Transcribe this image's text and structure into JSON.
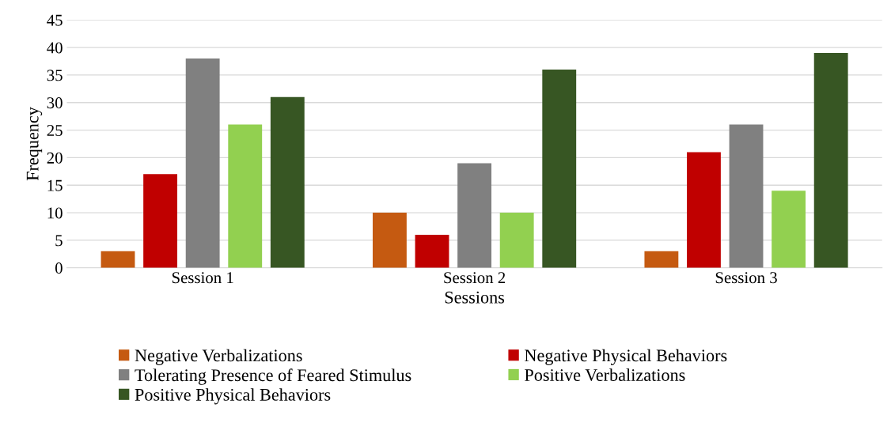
{
  "chart_data": {
    "type": "bar",
    "xlabel": "Sessions",
    "ylabel": "Frequency",
    "categories": [
      "Session 1",
      "Session 2",
      "Session 3"
    ],
    "series": [
      {
        "name": "Negative Verbalizations",
        "color": "#c55a11",
        "values": [
          3,
          10,
          3
        ]
      },
      {
        "name": "Negative Physical Behaviors",
        "color": "#c00000",
        "values": [
          17,
          6,
          21
        ]
      },
      {
        "name": "Tolerating Presence of Feared Stimulus",
        "color": "#808080",
        "values": [
          38,
          19,
          26
        ]
      },
      {
        "name": "Positive Verbalizations",
        "color": "#92d050",
        "values": [
          26,
          10,
          14
        ]
      },
      {
        "name": "Positive Physical Behaviors",
        "color": "#375623",
        "values": [
          31,
          36,
          39
        ]
      }
    ],
    "ylim": [
      0,
      45
    ],
    "yticks": [
      0,
      5,
      10,
      15,
      20,
      25,
      30,
      35,
      40,
      45
    ],
    "grid": "y",
    "legend": "bottom"
  }
}
